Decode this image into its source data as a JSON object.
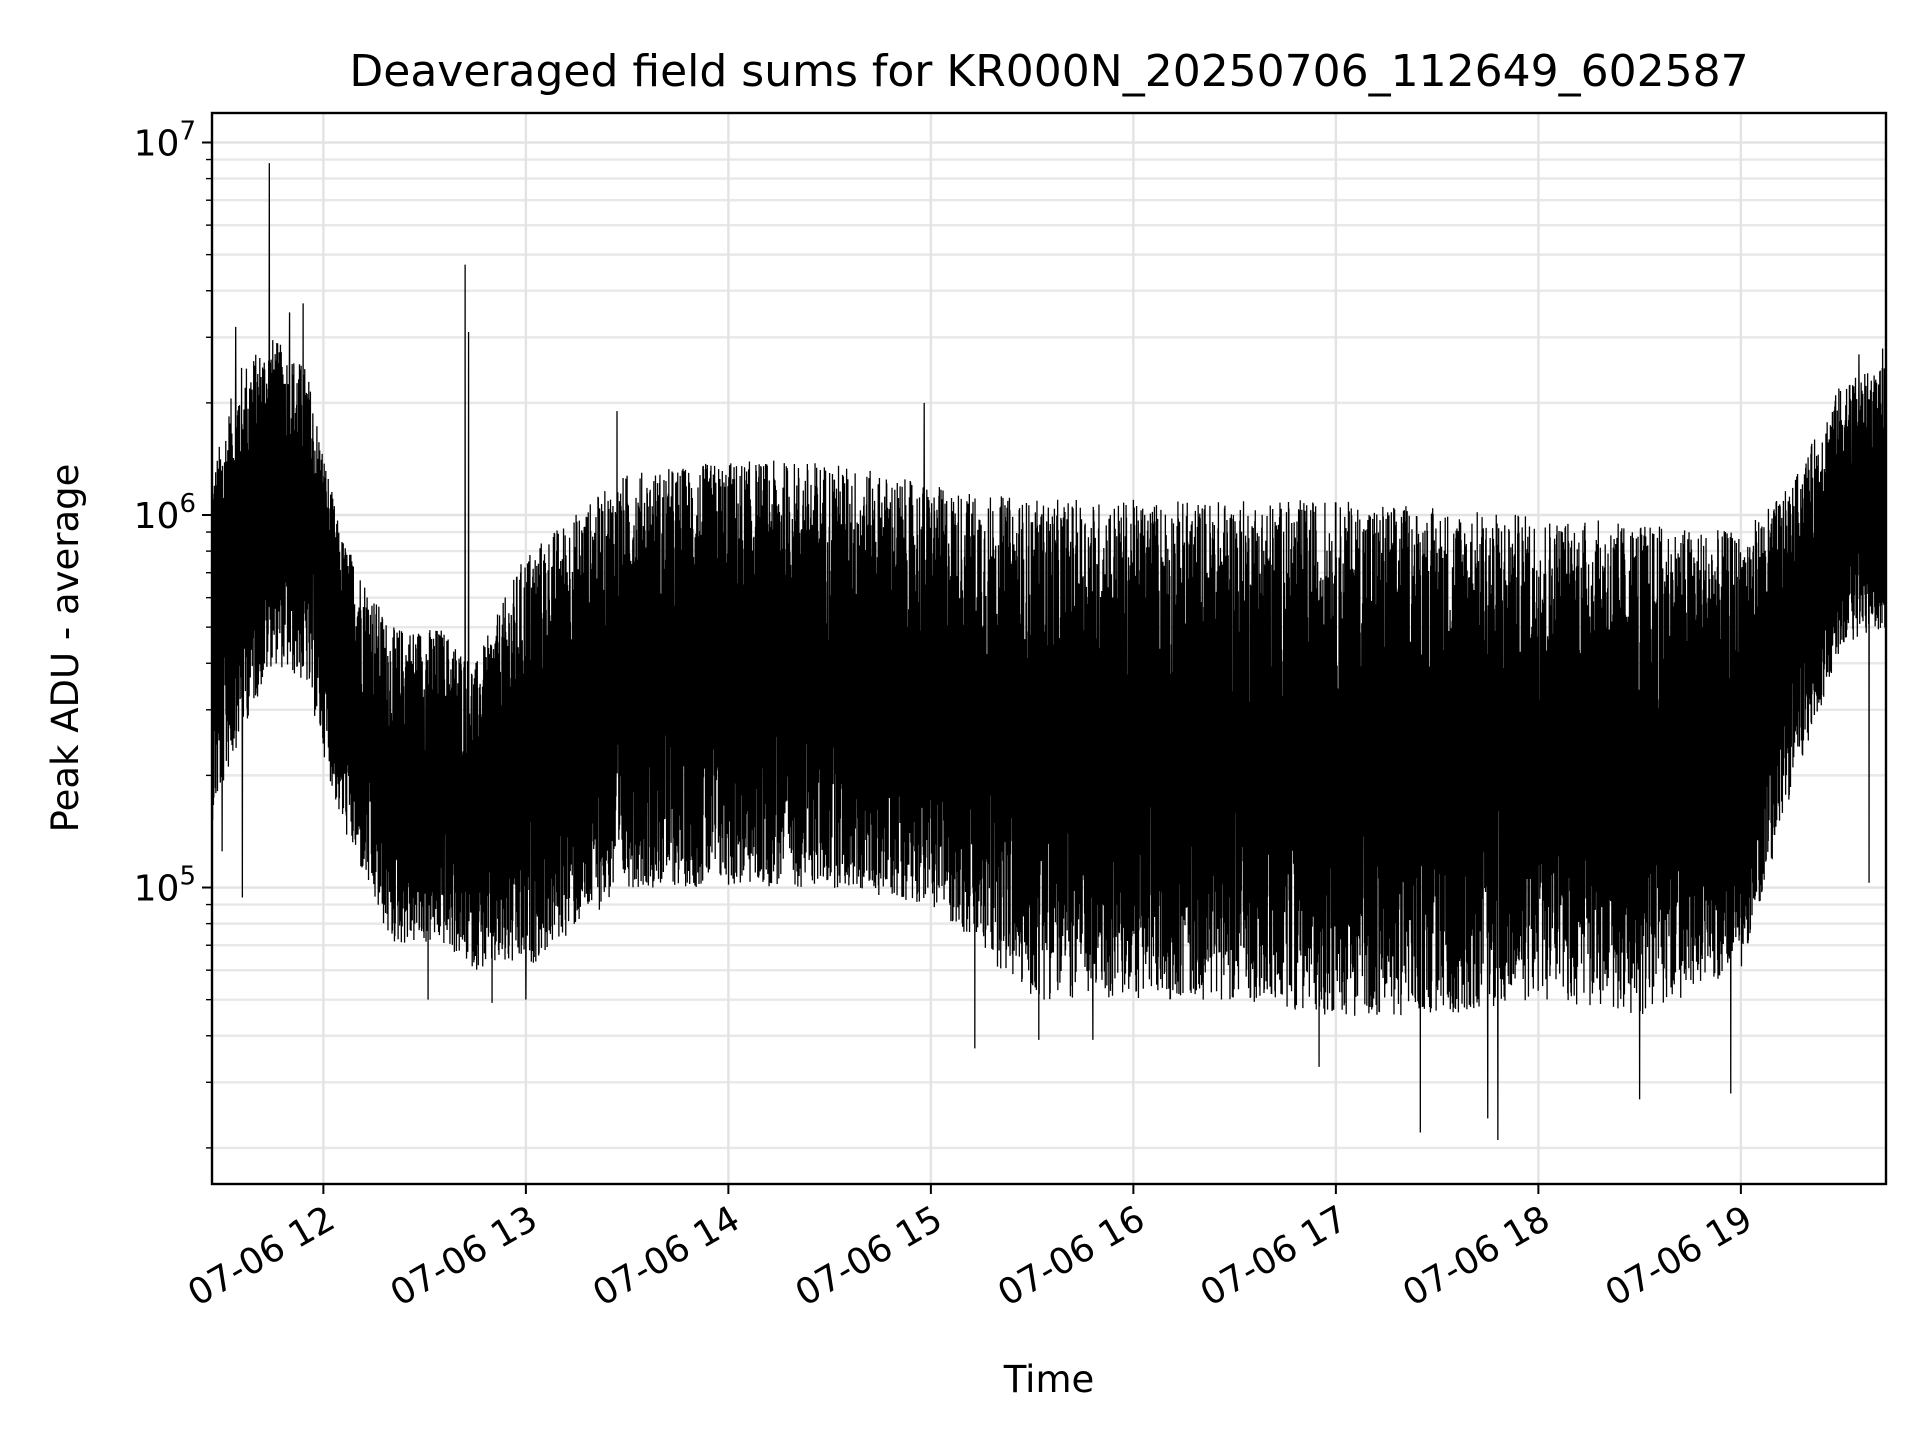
{
  "chart_data": {
    "type": "line",
    "title": "Deaveraged field sums for KR000N_20250706_112649_602587",
    "xlabel": "Time",
    "ylabel": "Peak ADU - average",
    "xscale": "time",
    "yscale": "log",
    "grid": true,
    "legend": "none",
    "series_color": "#000000",
    "xlim": [
      "2025-07-06 11:27",
      "2025-07-06 19:43"
    ],
    "ylim": [
      16000,
      12000000
    ],
    "x_tick_labels": [
      "07-06 12",
      "07-06 13",
      "07-06 14",
      "07-06 15",
      "07-06 16",
      "07-06 17",
      "07-06 18",
      "07-06 19"
    ],
    "x_tick_values": [
      "2025-07-06 12:00",
      "2025-07-06 13:00",
      "2025-07-06 14:00",
      "2025-07-06 15:00",
      "2025-07-06 16:00",
      "2025-07-06 17:00",
      "2025-07-06 18:00",
      "2025-07-06 19:00"
    ],
    "y_tick_labels": [
      {
        "base": "10",
        "exp": "5",
        "value": 100000
      },
      {
        "base": "10",
        "exp": "6",
        "value": 1000000
      },
      {
        "base": "10",
        "exp": "7",
        "value": 10000000
      }
    ],
    "series": [
      {
        "x_start": "2025-07-06 11:27",
        "x_end": "2025-07-06 19:43",
        "y_band": [
          {
            "t": "2025-07-06 11:27",
            "low": 150000,
            "high": 1300000
          },
          {
            "t": "2025-07-06 11:35",
            "low": 250000,
            "high": 2500000
          },
          {
            "t": "2025-07-06 11:45",
            "low": 400000,
            "high": 3000000
          },
          {
            "t": "2025-07-06 11:55",
            "low": 350000,
            "high": 2500000
          },
          {
            "t": "2025-07-06 12:05",
            "low": 150000,
            "high": 900000
          },
          {
            "t": "2025-07-06 12:20",
            "low": 70000,
            "high": 500000
          },
          {
            "t": "2025-07-06 12:35",
            "low": 70000,
            "high": 500000
          },
          {
            "t": "2025-07-06 12:45",
            "low": 60000,
            "high": 400000
          },
          {
            "t": "2025-07-06 13:00",
            "low": 60000,
            "high": 800000
          },
          {
            "t": "2025-07-06 13:30",
            "low": 100000,
            "high": 1300000
          },
          {
            "t": "2025-07-06 14:00",
            "low": 100000,
            "high": 1400000
          },
          {
            "t": "2025-07-06 14:30",
            "low": 100000,
            "high": 1400000
          },
          {
            "t": "2025-07-06 15:00",
            "low": 90000,
            "high": 1200000
          },
          {
            "t": "2025-07-06 15:30",
            "low": 50000,
            "high": 1100000
          },
          {
            "t": "2025-07-06 16:00",
            "low": 50000,
            "high": 1100000
          },
          {
            "t": "2025-07-06 16:30",
            "low": 50000,
            "high": 1100000
          },
          {
            "t": "2025-07-06 17:00",
            "low": 45000,
            "high": 1100000
          },
          {
            "t": "2025-07-06 17:30",
            "low": 45000,
            "high": 1050000
          },
          {
            "t": "2025-07-06 18:00",
            "low": 50000,
            "high": 1000000
          },
          {
            "t": "2025-07-06 18:30",
            "low": 45000,
            "high": 950000
          },
          {
            "t": "2025-07-06 19:00",
            "low": 60000,
            "high": 900000
          },
          {
            "t": "2025-07-06 19:15",
            "low": 180000,
            "high": 1200000
          },
          {
            "t": "2025-07-06 19:30",
            "low": 450000,
            "high": 2300000
          },
          {
            "t": "2025-07-06 19:43",
            "low": 500000,
            "high": 2500000
          }
        ],
        "spikes": [
          {
            "t": "2025-07-06 11:44",
            "y": 8800000
          },
          {
            "t": "2025-07-06 11:34",
            "y": 3200000
          },
          {
            "t": "2025-07-06 11:50",
            "y": 3500000
          },
          {
            "t": "2025-07-06 11:54",
            "y": 3700000
          },
          {
            "t": "2025-07-06 12:42",
            "y": 4700000
          },
          {
            "t": "2025-07-06 12:43",
            "y": 3100000
          },
          {
            "t": "2025-07-06 14:58",
            "y": 2000000
          },
          {
            "t": "2025-07-06 13:27",
            "y": 1900000
          },
          {
            "t": "2025-07-06 19:35",
            "y": 2700000
          },
          {
            "t": "2025-07-06 19:42",
            "y": 2800000
          },
          {
            "t": "2025-07-06 11:36",
            "y": 94000
          },
          {
            "t": "2025-07-06 11:30",
            "y": 125000
          },
          {
            "t": "2025-07-06 12:31",
            "y": 50000
          },
          {
            "t": "2025-07-06 12:50",
            "y": 49000
          },
          {
            "t": "2025-07-06 13:00",
            "y": 50000
          },
          {
            "t": "2025-07-06 15:13",
            "y": 37000
          },
          {
            "t": "2025-07-06 15:32",
            "y": 39000
          },
          {
            "t": "2025-07-06 15:48",
            "y": 39000
          },
          {
            "t": "2025-07-06 16:55",
            "y": 33000
          },
          {
            "t": "2025-07-06 17:25",
            "y": 22000
          },
          {
            "t": "2025-07-06 17:45",
            "y": 24000
          },
          {
            "t": "2025-07-06 17:48",
            "y": 21000
          },
          {
            "t": "2025-07-06 18:30",
            "y": 27000
          },
          {
            "t": "2025-07-06 18:57",
            "y": 28000
          },
          {
            "t": "2025-07-06 19:38",
            "y": 103000
          }
        ]
      }
    ]
  }
}
